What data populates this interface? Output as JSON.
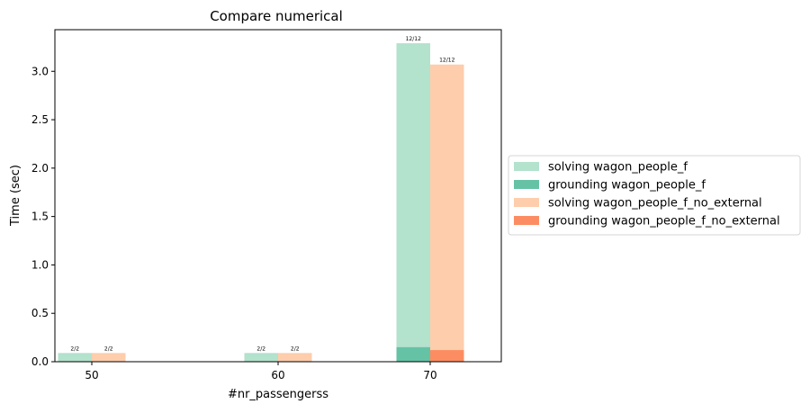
{
  "chart_data": {
    "type": "bar",
    "title": "Compare numerical",
    "xlabel": "#nr_passengerss",
    "ylabel": "Time (sec)",
    "categories": [
      "50",
      "60",
      "70"
    ],
    "ylim": [
      0,
      3.43
    ],
    "yticks": [
      0.0,
      0.5,
      1.0,
      1.5,
      2.0,
      2.5,
      3.0
    ],
    "ytick_labels": [
      "0.0",
      "0.5",
      "1.0",
      "1.5",
      "2.0",
      "2.5",
      "3.0"
    ],
    "grid": false,
    "legend_placement": "outside-right",
    "series": [
      {
        "name": "solving wagon_people_f",
        "values": [
          0.09,
          0.09,
          3.29
        ],
        "color": "#b3e2cd",
        "group": 0
      },
      {
        "name": "grounding wagon_people_f",
        "values": [
          0.0,
          0.0,
          0.15
        ],
        "color": "#66c2a5",
        "group": 0
      },
      {
        "name": "solving wagon_people_f_no_external",
        "values": [
          0.09,
          0.09,
          3.07
        ],
        "color": "#fdcdac",
        "group": 1
      },
      {
        "name": "grounding wagon_people_f_no_external",
        "values": [
          0.0,
          0.0,
          0.12
        ],
        "color": "#fc8d62",
        "group": 1
      }
    ],
    "bar_annotations": [
      [
        "2/2",
        "2/2",
        "12/12"
      ],
      [
        "2/2",
        "2/2",
        "12/12"
      ]
    ]
  }
}
